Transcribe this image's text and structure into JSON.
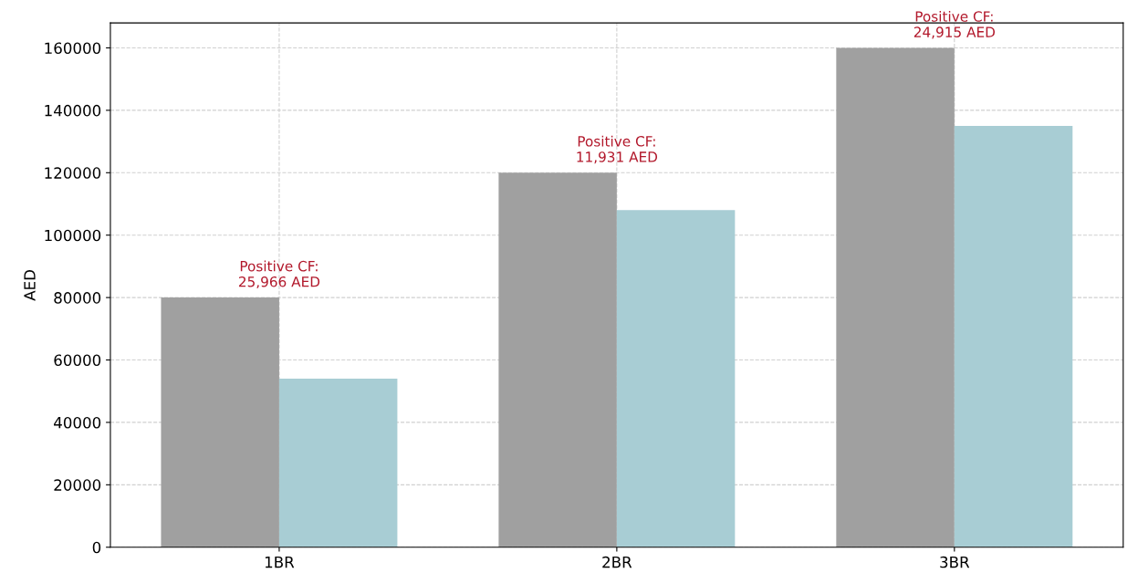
{
  "chart_data": {
    "type": "bar",
    "categories": [
      "1BR",
      "2BR",
      "3BR"
    ],
    "series": [
      {
        "color": "#a0a0a0",
        "values": [
          80000,
          120000,
          160000
        ]
      },
      {
        "color": "#a8cdd4",
        "values": [
          54000,
          108000,
          135000
        ]
      }
    ],
    "ylabel": "AED",
    "ylim": [
      0,
      168000
    ],
    "yticks": [
      0,
      20000,
      40000,
      60000,
      80000,
      100000,
      120000,
      140000,
      160000
    ],
    "grid": true,
    "legend": false,
    "annotations": [
      "Positive CF:\n25,966 AED",
      "Positive CF:\n11,931 AED",
      "Positive CF:\n24,915 AED"
    ]
  }
}
